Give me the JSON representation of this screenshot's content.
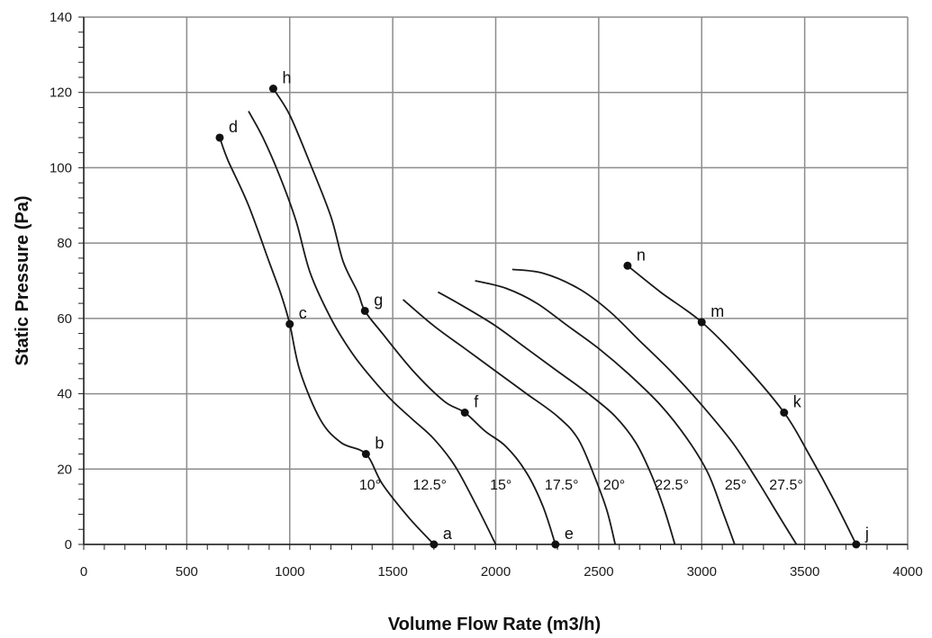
{
  "chart_data": {
    "type": "line",
    "xlabel": "Volume Flow Rate (m3/h)",
    "ylabel": "Static Pressure (Pa)",
    "xlim": [
      0,
      4000
    ],
    "ylim": [
      0,
      140
    ],
    "x_ticks": [
      "0",
      "500",
      "1000",
      "1500",
      "2000",
      "2500",
      "3000",
      "3500",
      "4000"
    ],
    "y_ticks": [
      "0",
      "20",
      "40",
      "60",
      "80",
      "100",
      "120",
      "140"
    ],
    "grid": true,
    "series": [
      {
        "name": "10°",
        "points": [
          [
            660,
            108
          ],
          [
            700,
            102
          ],
          [
            800,
            90
          ],
          [
            900,
            75
          ],
          [
            960,
            66
          ],
          [
            1000,
            58.5
          ],
          [
            1050,
            46
          ],
          [
            1150,
            33
          ],
          [
            1250,
            27
          ],
          [
            1370,
            24
          ],
          [
            1450,
            16
          ],
          [
            1580,
            7
          ],
          [
            1700,
            0
          ]
        ]
      },
      {
        "name": "12.5°",
        "points": [
          [
            800,
            115
          ],
          [
            870,
            108
          ],
          [
            950,
            98
          ],
          [
            1030,
            86
          ],
          [
            1100,
            72
          ],
          [
            1200,
            60
          ],
          [
            1300,
            51
          ],
          [
            1400,
            44
          ],
          [
            1500,
            38
          ],
          [
            1600,
            33
          ],
          [
            1700,
            28
          ],
          [
            1800,
            21
          ],
          [
            1900,
            11
          ],
          [
            2000,
            0
          ]
        ]
      },
      {
        "name": "15°",
        "points": [
          [
            920,
            121
          ],
          [
            1000,
            114
          ],
          [
            1100,
            101
          ],
          [
            1200,
            87
          ],
          [
            1260,
            75
          ],
          [
            1330,
            67
          ],
          [
            1365,
            62
          ],
          [
            1450,
            56
          ],
          [
            1600,
            46
          ],
          [
            1750,
            38
          ],
          [
            1850,
            35
          ],
          [
            1950,
            30
          ],
          [
            2050,
            26
          ],
          [
            2150,
            19
          ],
          [
            2230,
            10
          ],
          [
            2290,
            0
          ]
        ]
      },
      {
        "name": "17.5°",
        "points": [
          [
            1550,
            65
          ],
          [
            1700,
            58
          ],
          [
            1850,
            52
          ],
          [
            2000,
            46
          ],
          [
            2150,
            40
          ],
          [
            2300,
            34
          ],
          [
            2400,
            28
          ],
          [
            2480,
            18
          ],
          [
            2540,
            9
          ],
          [
            2580,
            0
          ]
        ]
      },
      {
        "name": "20°",
        "points": [
          [
            1720,
            67
          ],
          [
            1850,
            63
          ],
          [
            2000,
            58
          ],
          [
            2150,
            52
          ],
          [
            2300,
            46
          ],
          [
            2450,
            40
          ],
          [
            2580,
            34
          ],
          [
            2680,
            27
          ],
          [
            2760,
            18
          ],
          [
            2820,
            9
          ],
          [
            2870,
            0
          ]
        ]
      },
      {
        "name": "22.5°",
        "points": [
          [
            1900,
            70
          ],
          [
            2050,
            68
          ],
          [
            2200,
            64
          ],
          [
            2350,
            58
          ],
          [
            2500,
            52
          ],
          [
            2650,
            45
          ],
          [
            2800,
            37
          ],
          [
            2930,
            28
          ],
          [
            3030,
            19
          ],
          [
            3100,
            9
          ],
          [
            3160,
            0
          ]
        ]
      },
      {
        "name": "25°",
        "points": [
          [
            2080,
            73
          ],
          [
            2230,
            72
          ],
          [
            2400,
            68
          ],
          [
            2550,
            62
          ],
          [
            2700,
            54
          ],
          [
            2850,
            46
          ],
          [
            3000,
            37
          ],
          [
            3150,
            27
          ],
          [
            3270,
            17
          ],
          [
            3370,
            8
          ],
          [
            3460,
            0
          ]
        ]
      },
      {
        "name": "27.5°",
        "points": [
          [
            2640,
            74
          ],
          [
            2800,
            67
          ],
          [
            3000,
            59
          ],
          [
            3200,
            48
          ],
          [
            3400,
            35
          ],
          [
            3520,
            24
          ],
          [
            3640,
            12
          ],
          [
            3750,
            0
          ]
        ]
      }
    ],
    "marked_points": [
      {
        "label": "a",
        "x": 1700,
        "y": 0
      },
      {
        "label": "b",
        "x": 1370,
        "y": 24
      },
      {
        "label": "c",
        "x": 1000,
        "y": 58.5
      },
      {
        "label": "d",
        "x": 660,
        "y": 108
      },
      {
        "label": "e",
        "x": 2290,
        "y": 0
      },
      {
        "label": "f",
        "x": 1850,
        "y": 35
      },
      {
        "label": "g",
        "x": 1365,
        "y": 62
      },
      {
        "label": "h",
        "x": 920,
        "y": 121
      },
      {
        "label": "j",
        "x": 3750,
        "y": 0
      },
      {
        "label": "k",
        "x": 3400,
        "y": 35
      },
      {
        "label": "m",
        "x": 3000,
        "y": 59
      },
      {
        "label": "n",
        "x": 2640,
        "y": 74
      }
    ],
    "angle_labels": [
      {
        "text": "10°",
        "x": 1390,
        "y": 16
      },
      {
        "text": "12.5°",
        "x": 1680,
        "y": 16
      },
      {
        "text": "15°",
        "x": 2025,
        "y": 16
      },
      {
        "text": "17.5°",
        "x": 2320,
        "y": 16
      },
      {
        "text": "20°",
        "x": 2575,
        "y": 16
      },
      {
        "text": "22.5°",
        "x": 2855,
        "y": 16
      },
      {
        "text": "25°",
        "x": 3165,
        "y": 16
      },
      {
        "text": "27.5°",
        "x": 3410,
        "y": 16
      }
    ]
  }
}
